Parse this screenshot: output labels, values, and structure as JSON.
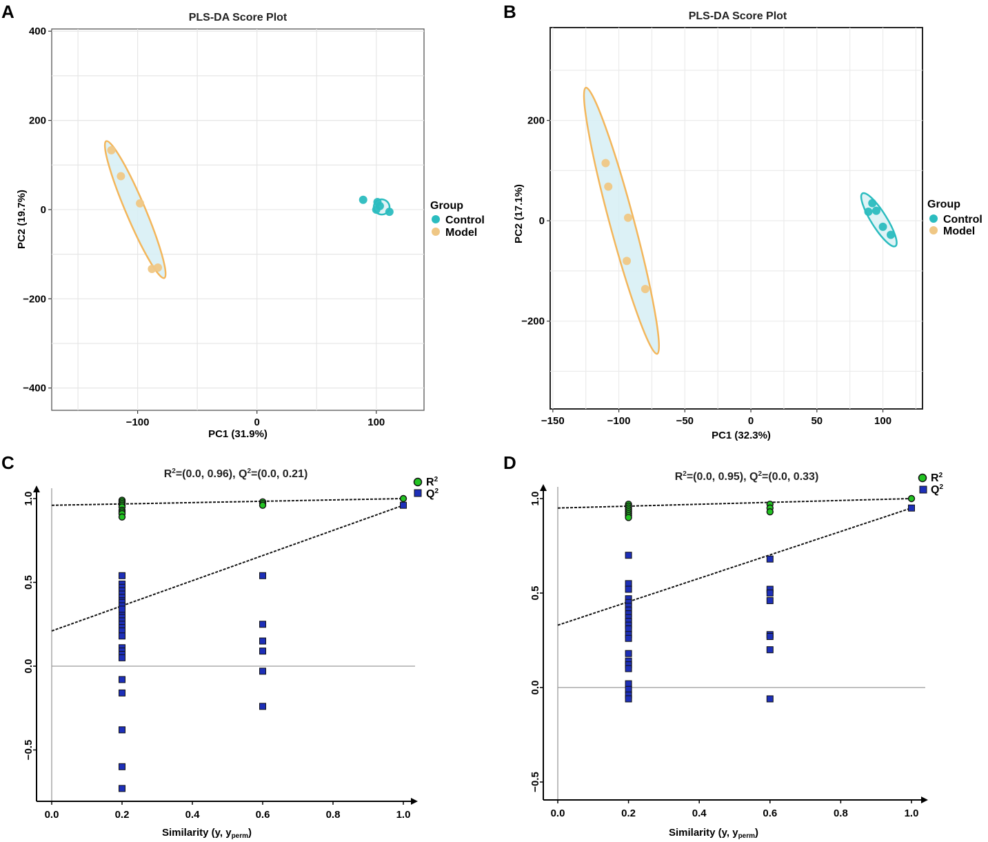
{
  "panels": [
    "A",
    "B",
    "C",
    "D"
  ],
  "chart_data": [
    {
      "panel": "A",
      "type": "scatter",
      "title": "PLS-DA Score Plot",
      "xlabel": "PC1 (31.9%)",
      "ylabel": "PC2 (19.7%)",
      "xlim": [
        -172,
        140
      ],
      "ylim": [
        -450,
        405
      ],
      "xticks": [
        -100,
        0,
        100
      ],
      "yticks": [
        400,
        200,
        0,
        -200,
        -400
      ],
      "xtick_labels": [
        "−100",
        "0",
        "100"
      ],
      "ytick_labels": [
        "400",
        "200",
        "0",
        "−200",
        "−400"
      ],
      "grid": true,
      "legend": {
        "title": "Group",
        "position": "right",
        "entries": [
          "Control",
          "Model"
        ]
      },
      "colors": {
        "Control": "#2bbcbf",
        "Model": "#efc785",
        "Control_ellipse_fill": "#cdeef3",
        "Model_ellipse_fill": "#d6eff5",
        "Control_ellipse_stroke": "#2bbcbf",
        "Model_ellipse_stroke": "#f3b65b"
      },
      "series": [
        {
          "name": "Control",
          "x": [
            89,
            101,
            103,
            100,
            111
          ],
          "y": [
            22,
            17,
            8,
            0,
            -5
          ]
        },
        {
          "name": "Model",
          "x": [
            -122,
            -114,
            -98,
            -88,
            -83
          ],
          "y": [
            133,
            75,
            14,
            -133,
            -130
          ]
        }
      ],
      "ellipses": [
        {
          "group": "Control",
          "cx": 104.5,
          "cy": 6,
          "a": 46,
          "b": 11,
          "angle_deg": 17
        },
        {
          "group": "Model",
          "cx": -102,
          "cy": 0,
          "a": 433,
          "b": 14,
          "angle_deg": 67
        }
      ]
    },
    {
      "panel": "B",
      "type": "scatter",
      "title": "PLS-DA Score Plot",
      "xlabel": "PC1 (32.3%)",
      "ylabel": "PC2 (17.1%)",
      "xlim": [
        -152,
        130
      ],
      "ylim": [
        -375,
        385
      ],
      "xticks": [
        -150,
        -100,
        -50,
        0,
        50,
        100
      ],
      "yticks": [
        200,
        0,
        -200
      ],
      "xtick_labels": [
        "−150",
        "−100",
        "−50",
        "0",
        "50",
        "100"
      ],
      "ytick_labels": [
        "200",
        "0",
        "−200"
      ],
      "grid": true,
      "legend": {
        "title": "Group",
        "position": "right",
        "entries": [
          "Control",
          "Model"
        ]
      },
      "colors": {
        "Control": "#2bbcbf",
        "Model": "#efc785"
      },
      "series": [
        {
          "name": "Control",
          "x": [
            92,
            95,
            89,
            100,
            106
          ],
          "y": [
            35,
            20,
            18,
            -12,
            -28
          ]
        },
        {
          "name": "Model",
          "x": [
            -110,
            -108,
            -93,
            -94,
            -80
          ],
          "y": [
            115,
            68,
            6,
            -80,
            -136
          ]
        }
      ],
      "ellipses": [
        {
          "group": "Control",
          "cx": 97,
          "cy": 2,
          "a": 100,
          "b": 7,
          "angle_deg": 58
        },
        {
          "group": "Model",
          "cx": -98,
          "cy": 0,
          "a": 352,
          "b": 11,
          "angle_deg": 75
        }
      ]
    },
    {
      "panel": "C",
      "type": "scatter",
      "title_parts": [
        "R",
        "2",
        "=(0.0, 0.96), Q",
        "2",
        "=(0.0, 0.21)"
      ],
      "xlabel_parts": [
        "Similarity (y, y",
        "perm",
        ")"
      ],
      "ylabel": "",
      "xlim": [
        -0.02,
        1.06
      ],
      "ylim": [
        -0.82,
        1.08
      ],
      "xticks": [
        0.0,
        0.2,
        0.4,
        0.6,
        0.8,
        1.0
      ],
      "yticks": [
        1.0,
        0.5,
        0.0,
        -0.5
      ],
      "xtick_labels": [
        "0.0",
        "0.2",
        "0.4",
        "0.6",
        "0.8",
        "1.0"
      ],
      "ytick_labels": [
        "1.0",
        "0.5",
        "0.0",
        "−0.5"
      ],
      "grid": false,
      "legend": {
        "position": "top-right",
        "entries": [
          {
            "base": "R",
            "sup": "2"
          },
          {
            "base": "Q",
            "sup": "2"
          }
        ]
      },
      "colors": {
        "R2": "#22c322",
        "Q2": "#1d2fb8"
      },
      "series": [
        {
          "name": "R2",
          "x": [
            0.2,
            0.2,
            0.2,
            0.2,
            0.2,
            0.2,
            0.2,
            0.2,
            0.2,
            0.6,
            0.6,
            0.6,
            1.0
          ],
          "y": [
            0.99,
            0.98,
            0.97,
            0.96,
            0.95,
            0.93,
            0.92,
            0.91,
            0.89,
            0.98,
            0.97,
            0.96,
            1.0
          ]
        },
        {
          "name": "Q2",
          "x": [
            0.2,
            0.2,
            0.2,
            0.2,
            0.2,
            0.2,
            0.2,
            0.2,
            0.2,
            0.2,
            0.2,
            0.2,
            0.2,
            0.2,
            0.2,
            0.2,
            0.2,
            0.2,
            0.2,
            0.2,
            0.2,
            0.2,
            0.2,
            0.2,
            0.2,
            0.2,
            0.2,
            0.2,
            0.2,
            0.6,
            0.6,
            0.6,
            0.6,
            0.6,
            0.6,
            1.0
          ],
          "y": [
            0.54,
            0.49,
            0.47,
            0.45,
            0.43,
            0.41,
            0.39,
            0.37,
            0.35,
            0.33,
            0.31,
            0.29,
            0.27,
            0.25,
            0.23,
            0.21,
            0.18,
            0.11,
            0.09,
            0.07,
            0.05,
            -0.08,
            -0.16,
            -0.38,
            -0.6,
            -0.73,
            0.38,
            0.36,
            0.34,
            0.54,
            0.25,
            0.15,
            0.09,
            -0.03,
            -0.24,
            0.96
          ]
        }
      ],
      "regression": [
        {
          "name": "R2",
          "intercept": 0.96,
          "slope": 0.04
        },
        {
          "name": "Q2",
          "intercept": 0.21,
          "slope": 0.75
        }
      ],
      "hline": 0
    },
    {
      "panel": "D",
      "type": "scatter",
      "title_parts": [
        "R",
        "2",
        "=(0.0, 0.95), Q",
        "2",
        "=(0.0, 0.33)"
      ],
      "xlabel_parts": [
        "Similarity (y, y",
        "perm",
        ")"
      ],
      "ylabel": "",
      "xlim": [
        -0.02,
        1.04
      ],
      "ylim": [
        -0.6,
        1.08
      ],
      "xticks": [
        0.0,
        0.2,
        0.4,
        0.6,
        0.8,
        1.0
      ],
      "yticks": [
        1.0,
        0.5,
        0.0,
        -0.5
      ],
      "xtick_labels": [
        "0.0",
        "0.2",
        "0.4",
        "0.6",
        "0.8",
        "1.0"
      ],
      "ytick_labels": [
        "1.0",
        "0.5",
        "0.0",
        "−0.5"
      ],
      "grid": false,
      "legend": {
        "position": "top-right",
        "entries": [
          {
            "base": "R",
            "sup": "2"
          },
          {
            "base": "Q",
            "sup": "2"
          }
        ]
      },
      "colors": {
        "R2": "#22c322",
        "Q2": "#1d2fb8"
      },
      "series": [
        {
          "name": "R2",
          "x": [
            0.2,
            0.2,
            0.2,
            0.2,
            0.2,
            0.2,
            0.2,
            0.2,
            0.6,
            0.6,
            0.6,
            1.0
          ],
          "y": [
            0.97,
            0.96,
            0.95,
            0.94,
            0.93,
            0.92,
            0.91,
            0.9,
            0.97,
            0.95,
            0.93,
            1.0
          ]
        },
        {
          "name": "Q2",
          "x": [
            0.2,
            0.2,
            0.2,
            0.2,
            0.2,
            0.2,
            0.2,
            0.2,
            0.2,
            0.2,
            0.2,
            0.2,
            0.2,
            0.2,
            0.2,
            0.2,
            0.2,
            0.2,
            0.2,
            0.2,
            0.2,
            0.2,
            0.6,
            0.6,
            0.6,
            0.6,
            0.6,
            0.6,
            0.6,
            0.6,
            1.0
          ],
          "y": [
            0.7,
            0.55,
            0.52,
            0.47,
            0.45,
            0.43,
            0.41,
            0.39,
            0.37,
            0.35,
            0.33,
            0.31,
            0.28,
            0.26,
            0.18,
            0.14,
            0.12,
            0.1,
            0.02,
            -0.01,
            -0.04,
            -0.06,
            0.68,
            0.52,
            0.5,
            0.46,
            0.28,
            0.27,
            0.2,
            -0.06,
            0.95
          ]
        }
      ],
      "regression": [
        {
          "name": "R2",
          "intercept": 0.95,
          "slope": 0.05
        },
        {
          "name": "Q2",
          "intercept": 0.33,
          "slope": 0.62
        }
      ],
      "hline": 0
    }
  ]
}
